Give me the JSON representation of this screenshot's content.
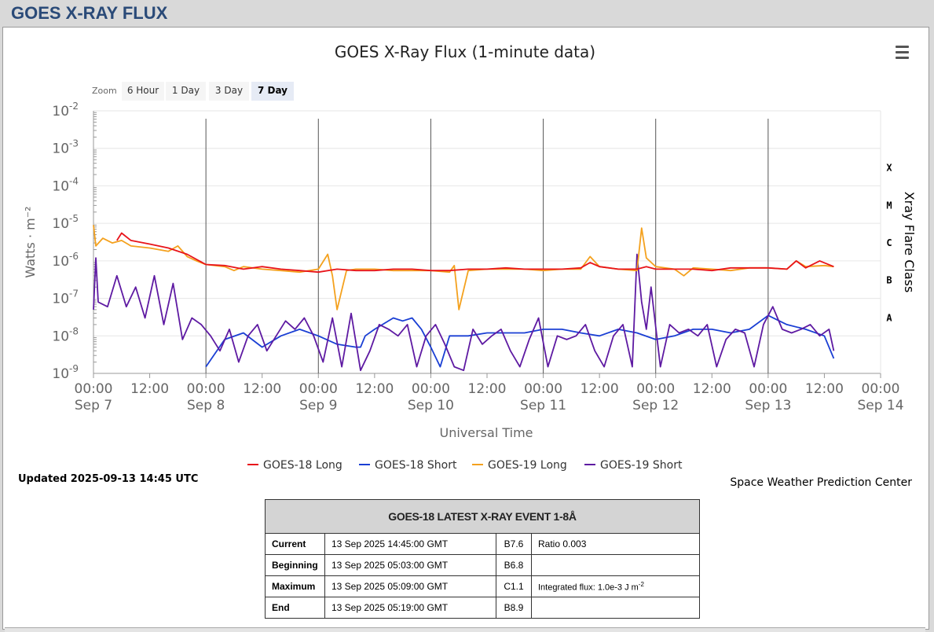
{
  "page": {
    "title": "GOES X-RAY FLUX"
  },
  "chart_data": {
    "type": "line",
    "title": "GOES X-Ray Flux (1-minute data)",
    "xlabel": "Universal Time",
    "ylabel": "Watts · m⁻²",
    "right_axis_label": "Xray Flare Class",
    "yscale": "log",
    "ylim": [
      1e-09,
      0.01
    ],
    "y_ticks": [
      {
        "base": "10",
        "exp": "-2"
      },
      {
        "base": "10",
        "exp": "-3"
      },
      {
        "base": "10",
        "exp": "-4"
      },
      {
        "base": "10",
        "exp": "-5"
      },
      {
        "base": "10",
        "exp": "-6"
      },
      {
        "base": "10",
        "exp": "-7"
      },
      {
        "base": "10",
        "exp": "-8"
      },
      {
        "base": "10",
        "exp": "-9"
      }
    ],
    "flare_classes": [
      {
        "label": "X",
        "flux": 0.0001
      },
      {
        "label": "M",
        "flux": 1e-05
      },
      {
        "label": "C",
        "flux": 1e-06
      },
      {
        "label": "B",
        "flux": 1e-07
      },
      {
        "label": "A",
        "flux": 1e-08
      }
    ],
    "x_range_hours": [
      0,
      168
    ],
    "x_ticks": [
      {
        "hour": 0,
        "time": "00:00",
        "date": "Sep 7"
      },
      {
        "hour": 12,
        "time": "12:00",
        "date": ""
      },
      {
        "hour": 24,
        "time": "00:00",
        "date": "Sep 8"
      },
      {
        "hour": 36,
        "time": "12:00",
        "date": ""
      },
      {
        "hour": 48,
        "time": "00:00",
        "date": "Sep 9"
      },
      {
        "hour": 60,
        "time": "12:00",
        "date": ""
      },
      {
        "hour": 72,
        "time": "00:00",
        "date": "Sep 10"
      },
      {
        "hour": 84,
        "time": "12:00",
        "date": ""
      },
      {
        "hour": 96,
        "time": "00:00",
        "date": "Sep 11"
      },
      {
        "hour": 108,
        "time": "12:00",
        "date": ""
      },
      {
        "hour": 120,
        "time": "00:00",
        "date": "Sep 12"
      },
      {
        "hour": 132,
        "time": "12:00",
        "date": ""
      },
      {
        "hour": 144,
        "time": "00:00",
        "date": "Sep 13"
      },
      {
        "hour": 156,
        "time": "12:00",
        "date": ""
      },
      {
        "hour": 168,
        "time": "00:00",
        "date": "Sep 14"
      }
    ],
    "day_lines_hours": [
      24,
      48,
      72,
      96,
      120,
      144
    ],
    "series": [
      {
        "name": "GOES-18 Long",
        "color": "#e8141a",
        "x": [
          5,
          6,
          8,
          12,
          16,
          20,
          24,
          28,
          32,
          36,
          40,
          44,
          48,
          52,
          56,
          60,
          64,
          68,
          72,
          76,
          80,
          84,
          88,
          92,
          96,
          100,
          104,
          106,
          108,
          112,
          116,
          118,
          120,
          124,
          128,
          132,
          136,
          140,
          144,
          148,
          150,
          152,
          155,
          158
        ],
        "y": [
          3.5e-06,
          5.5e-06,
          3.5e-06,
          2.8e-06,
          2.2e-06,
          1.5e-06,
          8e-07,
          7.5e-07,
          6e-07,
          7e-07,
          6e-07,
          5.5e-07,
          5e-07,
          6e-07,
          5.5e-07,
          5.5e-07,
          6e-07,
          6e-07,
          5.5e-07,
          5.5e-07,
          6e-07,
          6e-07,
          6.5e-07,
          6e-07,
          6e-07,
          6e-07,
          6.5e-07,
          9e-07,
          7e-07,
          6e-07,
          6e-07,
          7e-07,
          6e-07,
          6e-07,
          6e-07,
          5.5e-07,
          6.5e-07,
          6.5e-07,
          6.5e-07,
          6e-07,
          1e-06,
          6.5e-07,
          1e-06,
          7e-07
        ]
      },
      {
        "name": "GOES-18 Short",
        "color": "#1a3fd4",
        "x": [
          24,
          28,
          32,
          36,
          40,
          44,
          48,
          52,
          56,
          57,
          58,
          60,
          64,
          66,
          68,
          70,
          72,
          74,
          76,
          80,
          84,
          88,
          92,
          96,
          100,
          104,
          108,
          112,
          116,
          120,
          124,
          128,
          132,
          136,
          140,
          144,
          148,
          152,
          156,
          158
        ],
        "y": [
          1.5e-09,
          8e-09,
          1.2e-08,
          5e-09,
          1e-08,
          1.5e-08,
          1e-08,
          6e-09,
          5e-09,
          5e-09,
          1e-08,
          1.5e-08,
          3e-08,
          2.5e-08,
          3e-08,
          1.5e-08,
          5e-09,
          1.5e-09,
          1e-08,
          1e-08,
          1.2e-08,
          1.2e-08,
          1.2e-08,
          1.5e-08,
          1.5e-08,
          1.2e-08,
          1e-08,
          1.5e-08,
          1.2e-08,
          8e-09,
          1e-08,
          1.5e-08,
          1.5e-08,
          1.2e-08,
          1.5e-08,
          3.5e-08,
          2e-08,
          1.5e-08,
          1e-08,
          2.5e-09
        ]
      },
      {
        "name": "GOES-19 Long",
        "color": "#f4a11e",
        "x": [
          0,
          0.5,
          2,
          4,
          6,
          8,
          12,
          16,
          18,
          20,
          22,
          24,
          28,
          30,
          32,
          36,
          40,
          44,
          48,
          50,
          51,
          52,
          54,
          56,
          60,
          64,
          68,
          72,
          76,
          77,
          78,
          80,
          84,
          88,
          92,
          96,
          100,
          104,
          106,
          108,
          112,
          116,
          117,
          118,
          120,
          124,
          126,
          128,
          132,
          136,
          140,
          144,
          148,
          150,
          152,
          156,
          158
        ],
        "y": [
          9e-06,
          2.5e-06,
          4e-06,
          3e-06,
          3.5e-06,
          2.5e-06,
          2.2e-06,
          1.8e-06,
          2.5e-06,
          1.3e-06,
          1e-06,
          8e-07,
          7e-07,
          5.5e-07,
          7e-07,
          6e-07,
          5.5e-07,
          5e-07,
          6e-07,
          1.5e-06,
          4e-07,
          5e-08,
          5.5e-07,
          6e-07,
          6e-07,
          5.5e-07,
          5.5e-07,
          5.5e-07,
          5e-07,
          7.5e-07,
          5e-08,
          5.5e-07,
          6e-07,
          6e-07,
          6e-07,
          5.5e-07,
          6e-07,
          6e-07,
          1.3e-06,
          7e-07,
          6e-07,
          5.5e-07,
          7.5e-06,
          1.2e-06,
          7e-07,
          6e-07,
          4e-07,
          6.5e-07,
          6e-07,
          5.5e-07,
          6.5e-07,
          6.5e-07,
          6e-07,
          1e-06,
          7e-07,
          7.5e-07,
          7e-07
        ]
      },
      {
        "name": "GOES-19 Short",
        "color": "#5e1aa2",
        "x": [
          0,
          0.5,
          1,
          3,
          5,
          7,
          9,
          11,
          13,
          15,
          17,
          19,
          21,
          23,
          25,
          27,
          29,
          31,
          33,
          35,
          37,
          39,
          41,
          43,
          45,
          47,
          49,
          51,
          53,
          55,
          57,
          59,
          61,
          63,
          65,
          67,
          69,
          71,
          73,
          75,
          77,
          79,
          81,
          83,
          85,
          87,
          89,
          91,
          93,
          95,
          97,
          99,
          101,
          103,
          105,
          107,
          109,
          111,
          113,
          115,
          116,
          117,
          118,
          119,
          121,
          123,
          125,
          127,
          129,
          131,
          133,
          135,
          137,
          139,
          141,
          143,
          145,
          147,
          149,
          151,
          153,
          155,
          157,
          158
        ],
        "y": [
          5e-08,
          1.2e-06,
          8e-08,
          6e-08,
          4e-07,
          6e-08,
          2e-07,
          3e-08,
          4e-07,
          2e-08,
          2.5e-07,
          8e-09,
          3e-08,
          2e-08,
          1e-08,
          4e-09,
          1.5e-08,
          2e-09,
          1e-08,
          2e-08,
          4e-09,
          1e-08,
          2.5e-08,
          1.5e-08,
          3e-08,
          1e-08,
          2e-09,
          3e-08,
          1.5e-09,
          4e-08,
          1.2e-09,
          4e-09,
          2e-08,
          1.5e-08,
          1e-08,
          2e-08,
          1.5e-09,
          1e-08,
          2e-08,
          6e-09,
          1.5e-09,
          1.2e-09,
          1.5e-08,
          6e-09,
          1e-08,
          1.5e-08,
          4e-09,
          1.5e-09,
          8e-09,
          3e-08,
          1.5e-09,
          1e-08,
          8e-09,
          1e-08,
          2e-08,
          4e-09,
          1.5e-09,
          1e-08,
          2e-08,
          1.5e-09,
          1.5e-06,
          8e-08,
          1.5e-08,
          2e-07,
          1.5e-09,
          2e-08,
          1.2e-08,
          1.5e-08,
          1e-08,
          2e-08,
          1.5e-09,
          8e-09,
          1.5e-08,
          1.2e-08,
          1.5e-09,
          2e-08,
          6e-08,
          1.5e-08,
          1.2e-08,
          1.5e-08,
          2e-08,
          1e-08,
          1.5e-08,
          4e-09
        ]
      }
    ]
  },
  "zoom": {
    "label": "Zoom",
    "buttons": [
      "6 Hour",
      "1 Day",
      "3 Day",
      "7 Day"
    ],
    "selected": "7 Day"
  },
  "updated": "Updated 2025-09-13 14:45 UTC",
  "credit": "Space Weather Prediction Center",
  "event_table": {
    "title": "GOES-18 LATEST X-RAY EVENT 1-8Å",
    "rows": [
      {
        "label": "Current",
        "time": "13 Sep 2025 14:45:00 GMT",
        "class": "B7.6",
        "extra": "Ratio 0.003"
      },
      {
        "label": "Beginning",
        "time": "13 Sep 2025 05:03:00 GMT",
        "class": "B6.8",
        "extra": ""
      },
      {
        "label": "Maximum",
        "time": "13 Sep 2025 05:09:00 GMT",
        "class": "C1.1",
        "extra": "Integrated flux: 1.0e-3 J m",
        "extra_sup": "-2"
      },
      {
        "label": "End",
        "time": "13 Sep 2025 05:19:00 GMT",
        "class": "B8.9",
        "extra": ""
      }
    ]
  }
}
